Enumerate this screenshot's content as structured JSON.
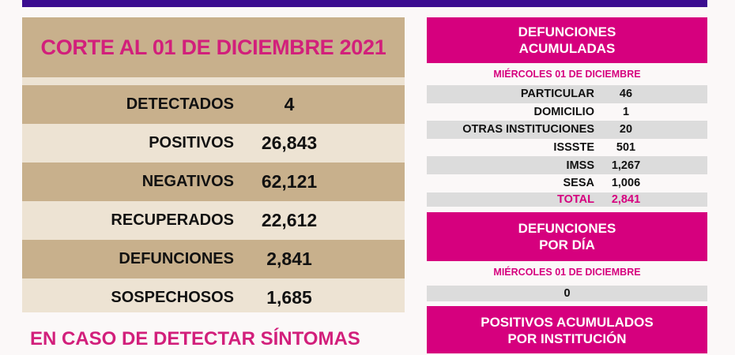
{
  "left": {
    "title": "CORTE AL 01 DE DICIEMBRE 2021",
    "rows": [
      {
        "label": "DETECTADOS",
        "value": "4"
      },
      {
        "label": "POSITIVOS",
        "value": "26,843"
      },
      {
        "label": "NEGATIVOS",
        "value": "62,121"
      },
      {
        "label": "RECUPERADOS",
        "value": "22,612"
      },
      {
        "label": "DEFUNCIONES",
        "value": "2,841"
      },
      {
        "label": "SOSPECHOSOS",
        "value": "1,685"
      }
    ],
    "footer": "EN CASO DE DETECTAR SÍNTOMAS"
  },
  "right": {
    "acum": {
      "title1": "DEFUNCIONES",
      "title2": "ACUMULADAS",
      "date": "MIÉRCOLES 01 DE DICIEMBRE",
      "rows": [
        {
          "label": "PARTICULAR",
          "value": "46"
        },
        {
          "label": "DOMICILIO",
          "value": "1"
        },
        {
          "label": "OTRAS INSTITUCIONES",
          "value": "20"
        },
        {
          "label": "ISSSTE",
          "value": "501"
        },
        {
          "label": "IMSS",
          "value": "1,267"
        },
        {
          "label": "SESA",
          "value": "1,006"
        }
      ],
      "total_label": "TOTAL",
      "total_value": "2,841"
    },
    "dia": {
      "title1": "DEFUNCIONES",
      "title2": "POR DÍA",
      "date": "MIÉRCOLES 01 DE DICIEMBRE",
      "value": "0"
    },
    "pos": {
      "title1": "POSITIVOS ACUMULADOS",
      "title2": "POR INSTITUCIÓN"
    }
  },
  "colors": {
    "purple": "#3b0d90",
    "tan": "#c8b08c",
    "cream": "#ede3d3",
    "pink": "#d6007e"
  }
}
